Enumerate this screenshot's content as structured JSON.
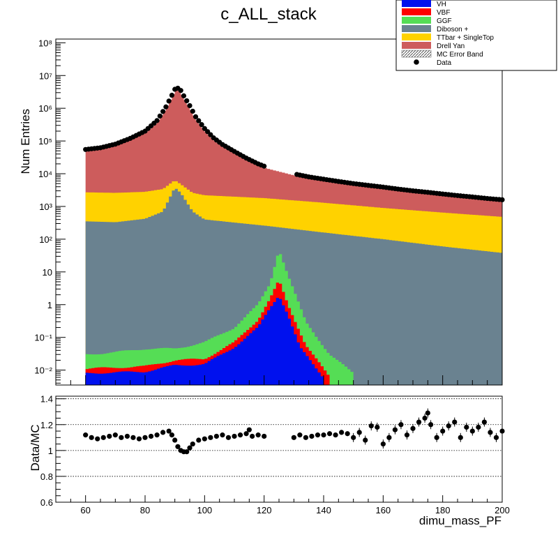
{
  "chart_data": {
    "title": "c_ALL_stack",
    "xlabel": "dimu_mass_PF",
    "type": "histogram",
    "main": {
      "ylabel": "Num Entries",
      "y_scale": "log",
      "ylim": [
        0.0035,
        130000000
      ],
      "xlim": [
        50,
        200
      ],
      "y_tick_labels": [
        "10⁸",
        "10⁷",
        "10⁶",
        "10⁵",
        "10⁴",
        "10³",
        "10²",
        "10",
        "1",
        "10⁻¹",
        "10⁻²"
      ],
      "y_tick_values": [
        100000000.0,
        10000000.0,
        1000000.0,
        100000.0,
        10000.0,
        1000.0,
        100,
        10,
        1,
        0.1,
        0.01
      ],
      "stack_order_bottom_to_top": [
        "VH",
        "VBF",
        "GGF",
        "Diboson +",
        "TTbar + SingleTop",
        "Drell Yan"
      ],
      "stack_cumulative_tops": {
        "VH_approx": [
          [
            60,
            0.008
          ],
          [
            80,
            0.009
          ],
          [
            90,
            0.014
          ],
          [
            100,
            0.015
          ],
          [
            110,
            0.05
          ],
          [
            118,
            0.2
          ],
          [
            122,
            0.8
          ],
          [
            125,
            2.0
          ],
          [
            128,
            0.5
          ],
          [
            132,
            0.05
          ],
          [
            140,
            0.006
          ]
        ],
        "VBF_approx": [
          [
            60,
            0.011
          ],
          [
            80,
            0.013
          ],
          [
            90,
            0.02
          ],
          [
            100,
            0.022
          ],
          [
            110,
            0.07
          ],
          [
            118,
            0.35
          ],
          [
            122,
            1.5
          ],
          [
            125,
            5.5
          ],
          [
            128,
            1.0
          ],
          [
            134,
            0.06
          ],
          [
            142,
            0.006
          ]
        ],
        "GGF_approx": [
          [
            60,
            0.03
          ],
          [
            70,
            0.035
          ],
          [
            80,
            0.045
          ],
          [
            90,
            0.045
          ],
          [
            100,
            0.07
          ],
          [
            110,
            0.2
          ],
          [
            118,
            1.0
          ],
          [
            122,
            4.5
          ],
          [
            125,
            50
          ],
          [
            128,
            8
          ],
          [
            134,
            0.3
          ],
          [
            142,
            0.03
          ],
          [
            150,
            0.008
          ]
        ],
        "Diboson_approx": [
          [
            60,
            350
          ],
          [
            70,
            330
          ],
          [
            80,
            420
          ],
          [
            86,
            700
          ],
          [
            90,
            3800
          ],
          [
            92,
            2600
          ],
          [
            96,
            700
          ],
          [
            100,
            400
          ],
          [
            120,
            260
          ],
          [
            140,
            160
          ],
          [
            160,
            100
          ],
          [
            180,
            60
          ],
          [
            200,
            38
          ]
        ],
        "TTbar_approx": [
          [
            60,
            2700
          ],
          [
            70,
            2600
          ],
          [
            80,
            2800
          ],
          [
            86,
            3400
          ],
          [
            90,
            6300
          ],
          [
            92,
            4800
          ],
          [
            96,
            2600
          ],
          [
            100,
            2200
          ],
          [
            120,
            1800
          ],
          [
            140,
            1300
          ],
          [
            160,
            900
          ],
          [
            180,
            650
          ],
          [
            200,
            480
          ]
        ]
      },
      "data_points_approx": [
        [
          60,
          55000
        ],
        [
          65,
          62000
        ],
        [
          70,
          80000
        ],
        [
          75,
          120000
        ],
        [
          80,
          200000
        ],
        [
          84,
          420000
        ],
        [
          87,
          1100000
        ],
        [
          89,
          2500000
        ],
        [
          90,
          3800000
        ],
        [
          91,
          4100000
        ],
        [
          92,
          3500000
        ],
        [
          93,
          2400000
        ],
        [
          95,
          1200000
        ],
        [
          97,
          550000
        ],
        [
          100,
          240000
        ],
        [
          103,
          125000
        ],
        [
          106,
          78000
        ],
        [
          110,
          48000
        ],
        [
          114,
          30000
        ],
        [
          118,
          20000
        ],
        [
          120,
          17000
        ],
        [
          131,
          9500
        ],
        [
          135,
          8000
        ],
        [
          140,
          6800
        ],
        [
          145,
          5800
        ],
        [
          150,
          5000
        ],
        [
          155,
          4400
        ],
        [
          160,
          3900
        ],
        [
          165,
          3400
        ],
        [
          170,
          3000
        ],
        [
          175,
          2700
        ],
        [
          180,
          2400
        ],
        [
          185,
          2150
        ],
        [
          190,
          1950
        ],
        [
          195,
          1750
        ],
        [
          200,
          1600
        ]
      ]
    },
    "ratio": {
      "ylabel": "Data/MC",
      "ylim": [
        0.6,
        1.42
      ],
      "xlim": [
        50,
        200
      ],
      "y_ticks": [
        "0.6",
        "0.8",
        "1",
        "1.2",
        "1.4"
      ],
      "x_ticks": [
        "60",
        "80",
        "100",
        "120",
        "140",
        "160",
        "180",
        "200"
      ],
      "dotted_gridlines": [
        0.8,
        1.0,
        1.2,
        1.4
      ],
      "points_approx": [
        [
          60,
          1.12
        ],
        [
          62,
          1.1
        ],
        [
          64,
          1.09
        ],
        [
          66,
          1.1
        ],
        [
          68,
          1.11
        ],
        [
          70,
          1.12
        ],
        [
          72,
          1.1
        ],
        [
          74,
          1.11
        ],
        [
          76,
          1.1
        ],
        [
          78,
          1.09
        ],
        [
          80,
          1.1
        ],
        [
          82,
          1.11
        ],
        [
          84,
          1.12
        ],
        [
          86,
          1.14
        ],
        [
          88,
          1.15
        ],
        [
          89,
          1.12
        ],
        [
          90,
          1.08
        ],
        [
          91,
          1.03
        ],
        [
          92,
          1.0
        ],
        [
          93,
          0.99
        ],
        [
          94,
          0.99
        ],
        [
          95,
          1.02
        ],
        [
          96,
          1.05
        ],
        [
          98,
          1.08
        ],
        [
          100,
          1.09
        ],
        [
          102,
          1.1
        ],
        [
          104,
          1.11
        ],
        [
          106,
          1.12
        ],
        [
          108,
          1.1
        ],
        [
          110,
          1.11
        ],
        [
          112,
          1.12
        ],
        [
          114,
          1.13
        ],
        [
          115,
          1.16
        ],
        [
          116,
          1.11
        ],
        [
          118,
          1.12
        ],
        [
          120,
          1.11
        ],
        [
          130,
          1.1
        ],
        [
          132,
          1.12
        ],
        [
          134,
          1.1
        ],
        [
          136,
          1.11
        ],
        [
          138,
          1.12
        ],
        [
          140,
          1.12
        ],
        [
          142,
          1.13
        ],
        [
          144,
          1.12
        ],
        [
          146,
          1.14
        ],
        [
          148,
          1.13
        ],
        [
          150,
          1.1
        ],
        [
          152,
          1.14
        ],
        [
          154,
          1.08
        ],
        [
          156,
          1.19
        ],
        [
          158,
          1.18
        ],
        [
          160,
          1.05
        ],
        [
          162,
          1.1
        ],
        [
          164,
          1.16
        ],
        [
          166,
          1.2
        ],
        [
          168,
          1.12
        ],
        [
          170,
          1.17
        ],
        [
          172,
          1.22
        ],
        [
          174,
          1.25
        ],
        [
          175,
          1.29
        ],
        [
          176,
          1.2
        ],
        [
          178,
          1.1
        ],
        [
          180,
          1.15
        ],
        [
          182,
          1.19
        ],
        [
          184,
          1.22
        ],
        [
          186,
          1.1
        ],
        [
          188,
          1.18
        ],
        [
          190,
          1.15
        ],
        [
          192,
          1.18
        ],
        [
          194,
          1.22
        ],
        [
          196,
          1.14
        ],
        [
          198,
          1.1
        ],
        [
          200,
          1.15
        ]
      ]
    },
    "legend": {
      "placement": "top-right",
      "entries": [
        {
          "label": "VH",
          "color": "#0011ee",
          "kind": "fill"
        },
        {
          "label": "VBF",
          "color": "#ff0000",
          "kind": "fill"
        },
        {
          "label": "GGF",
          "color": "#55dd55",
          "kind": "fill"
        },
        {
          "label": "Diboson +",
          "color": "#6a8290",
          "kind": "fill"
        },
        {
          "label": "TTbar + SingleTop",
          "color": "#ffd200",
          "kind": "fill"
        },
        {
          "label": "Drell Yan",
          "color": "#cd5c5c",
          "kind": "fill"
        },
        {
          "label": "MC Error Band",
          "color": "#555555",
          "kind": "hatch"
        },
        {
          "label": "Data",
          "color": "#000000",
          "kind": "marker"
        }
      ]
    }
  }
}
